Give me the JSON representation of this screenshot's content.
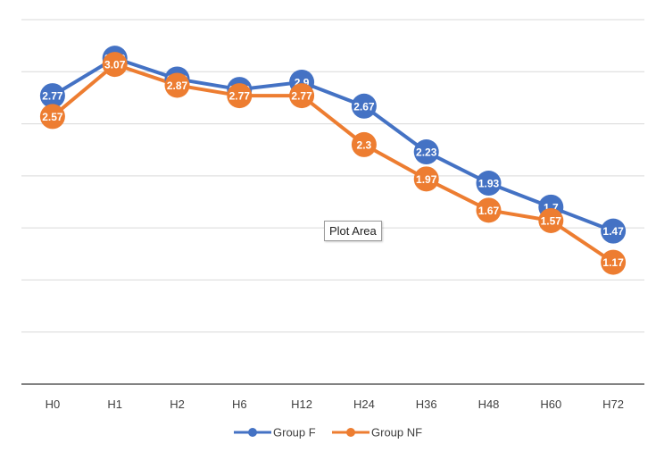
{
  "chart_data": {
    "type": "line",
    "title": "",
    "xlabel": "",
    "ylabel": "",
    "categories": [
      "H0",
      "H1",
      "H2",
      "H6",
      "H12",
      "H24",
      "H36",
      "H48",
      "H60",
      "H72"
    ],
    "series": [
      {
        "name": "Group F",
        "color": "#4472C4",
        "values": [
          2.77,
          3.13,
          2.93,
          2.83,
          2.9,
          2.67,
          2.23,
          1.93,
          1.7,
          1.47
        ]
      },
      {
        "name": "Group NF",
        "color": "#ED7D31",
        "values": [
          2.57,
          3.07,
          2.87,
          2.77,
          2.77,
          2.3,
          1.97,
          1.67,
          1.57,
          1.17
        ]
      }
    ],
    "ylim": [
      0,
      3.5
    ],
    "grid": true,
    "legend": "bottom",
    "data_labels": true
  },
  "tooltip": {
    "text": "Plot Area"
  }
}
